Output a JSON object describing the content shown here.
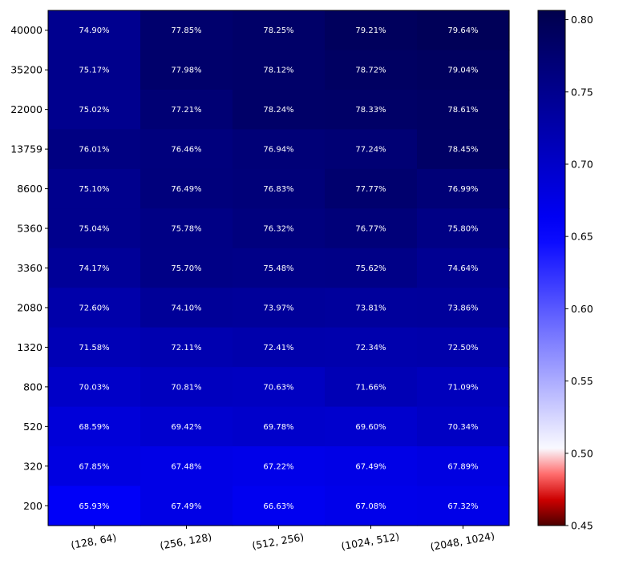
{
  "chart_data": {
    "type": "heatmap",
    "x_categories": [
      "(128, 64)",
      "(256, 128)",
      "(512, 256)",
      "(1024, 512)",
      "(2048, 1024)"
    ],
    "y_categories": [
      "40000",
      "35200",
      "22000",
      "13759",
      "8600",
      "5360",
      "3360",
      "2080",
      "1320",
      "800",
      "520",
      "320",
      "200"
    ],
    "values": [
      [
        0.749,
        0.7785,
        0.7825,
        0.7921,
        0.7964
      ],
      [
        0.7517,
        0.7798,
        0.7812,
        0.7872,
        0.7904
      ],
      [
        0.7502,
        0.7721,
        0.7824,
        0.7833,
        0.7861
      ],
      [
        0.7601,
        0.7646,
        0.7694,
        0.7724,
        0.7845
      ],
      [
        0.751,
        0.7649,
        0.7683,
        0.7777,
        0.7699
      ],
      [
        0.7504,
        0.7578,
        0.7632,
        0.7677,
        0.758
      ],
      [
        0.7417,
        0.757,
        0.7548,
        0.7562,
        0.7464
      ],
      [
        0.726,
        0.741,
        0.7397,
        0.7381,
        0.7386
      ],
      [
        0.7158,
        0.7211,
        0.7241,
        0.7234,
        0.725
      ],
      [
        0.7003,
        0.7081,
        0.7063,
        0.7166,
        0.7109
      ],
      [
        0.6859,
        0.6942,
        0.6978,
        0.696,
        0.7034
      ],
      [
        0.6785,
        0.6748,
        0.6722,
        0.6749,
        0.6789
      ],
      [
        0.6593,
        0.6749,
        0.6663,
        0.6708,
        0.6732
      ]
    ],
    "cell_labels": [
      [
        "74.90%",
        "77.85%",
        "78.25%",
        "79.21%",
        "79.64%"
      ],
      [
        "75.17%",
        "77.98%",
        "78.12%",
        "78.72%",
        "79.04%"
      ],
      [
        "75.02%",
        "77.21%",
        "78.24%",
        "78.33%",
        "78.61%"
      ],
      [
        "76.01%",
        "76.46%",
        "76.94%",
        "77.24%",
        "78.45%"
      ],
      [
        "75.10%",
        "76.49%",
        "76.83%",
        "77.77%",
        "76.99%"
      ],
      [
        "75.04%",
        "75.78%",
        "76.32%",
        "76.77%",
        "75.80%"
      ],
      [
        "74.17%",
        "75.70%",
        "75.48%",
        "75.62%",
        "74.64%"
      ],
      [
        "72.60%",
        "74.10%",
        "73.97%",
        "73.81%",
        "73.86%"
      ],
      [
        "71.58%",
        "72.11%",
        "72.41%",
        "72.34%",
        "72.50%"
      ],
      [
        "70.03%",
        "70.81%",
        "70.63%",
        "71.66%",
        "71.09%"
      ],
      [
        "68.59%",
        "69.42%",
        "69.78%",
        "69.60%",
        "70.34%"
      ],
      [
        "67.85%",
        "67.48%",
        "67.22%",
        "67.49%",
        "67.89%"
      ],
      [
        "65.93%",
        "67.49%",
        "66.63%",
        "67.08%",
        "67.32%"
      ]
    ],
    "colormap": "seismic",
    "colorbar": {
      "ticks": [
        "0.80",
        "0.75",
        "0.70",
        "0.65",
        "0.60",
        "0.55",
        "0.50",
        "0.45"
      ],
      "tick_values": [
        0.8,
        0.75,
        0.7,
        0.65,
        0.6,
        0.55,
        0.5,
        0.45
      ],
      "vmin": 0.45,
      "vcenter": 0.5,
      "vmax": 0.8064,
      "position": "right"
    },
    "x_tick_rotation_deg": 10,
    "colors": {
      "dark_red": "#800000",
      "red": "#ff0000",
      "white": "#ffffff",
      "blue": "#0000ff",
      "dark_blue": "#00004c"
    }
  }
}
